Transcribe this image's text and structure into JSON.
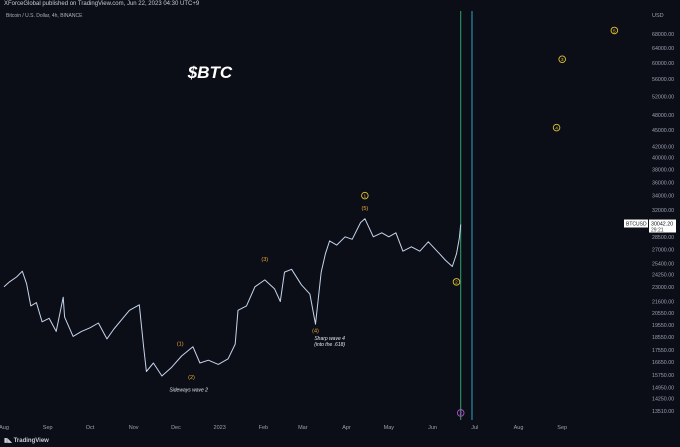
{
  "publisher": "XForceGlobal published on TradingView.com, Jun 22, 2023 04:30 UTC+9",
  "footer": {
    "brand": "TradingView"
  },
  "chart_data": {
    "type": "line",
    "symbol_line": "Bitcoin / U.S. Dollar, 4h, BINANCE",
    "title": "$BTC",
    "currency": "USD",
    "yscale": "log",
    "ylim": [
      13000,
      75000
    ],
    "xlim": [
      "2022-08-01",
      "2023-10-12"
    ],
    "x_ticks": [
      {
        "label": "Aug",
        "date": "2022-08-01"
      },
      {
        "label": "Sep",
        "date": "2022-09-01"
      },
      {
        "label": "Oct",
        "date": "2022-10-01"
      },
      {
        "label": "Nov",
        "date": "2022-11-01"
      },
      {
        "label": "Dec",
        "date": "2022-12-01"
      },
      {
        "label": "2023",
        "date": "2023-01-01"
      },
      {
        "label": "Feb",
        "date": "2023-02-01"
      },
      {
        "label": "Mar",
        "date": "2023-03-01"
      },
      {
        "label": "Apr",
        "date": "2023-04-01"
      },
      {
        "label": "May",
        "date": "2023-05-01"
      },
      {
        "label": "Jun",
        "date": "2023-06-01"
      },
      {
        "label": "Jul",
        "date": "2023-07-01"
      },
      {
        "label": "Aug",
        "date": "2023-08-01"
      },
      {
        "label": "Sep",
        "date": "2023-09-01"
      }
    ],
    "y_ticks": [
      "68000.00",
      "64000.00",
      "60000.00",
      "56000.00",
      "52000.00",
      "48000.00",
      "45000.00",
      "42000.00",
      "40000.00",
      "38000.00",
      "36000.00",
      "34000.00",
      "32000.00",
      "30000.00",
      "28500.00",
      "27000.00",
      "25400.00",
      "24250.00",
      "23000.00",
      "21600.00",
      "20550.00",
      "19550.00",
      "18550.00",
      "17550.00",
      "16650.00",
      "15750.00",
      "14950.00",
      "14250.00",
      "13510.00"
    ],
    "series": [
      {
        "color": "#c6d4ec",
        "points": [
          [
            "2022-08-01",
            23000
          ],
          [
            "2022-08-05",
            23500
          ],
          [
            "2022-08-10",
            24000
          ],
          [
            "2022-08-14",
            24600
          ],
          [
            "2022-08-17",
            23300
          ],
          [
            "2022-08-20",
            21200
          ],
          [
            "2022-08-24",
            21500
          ],
          [
            "2022-08-28",
            19800
          ],
          [
            "2022-09-02",
            20100
          ],
          [
            "2022-09-07",
            19000
          ],
          [
            "2022-09-12",
            22000
          ],
          [
            "2022-09-13",
            20200
          ],
          [
            "2022-09-19",
            18600
          ],
          [
            "2022-09-25",
            19000
          ],
          [
            "2022-10-01",
            19300
          ],
          [
            "2022-10-07",
            19700
          ],
          [
            "2022-10-13",
            18400
          ],
          [
            "2022-10-18",
            19200
          ],
          [
            "2022-10-25",
            20200
          ],
          [
            "2022-10-29",
            20800
          ],
          [
            "2022-11-05",
            21300
          ],
          [
            "2022-11-08",
            17800
          ],
          [
            "2022-11-10",
            16000
          ],
          [
            "2022-11-15",
            16600
          ],
          [
            "2022-11-21",
            15700
          ],
          [
            "2022-11-28",
            16300
          ],
          [
            "2022-12-05",
            17100
          ],
          [
            "2022-12-13",
            17800
          ],
          [
            "2022-12-18",
            16600
          ],
          [
            "2022-12-24",
            16800
          ],
          [
            "2022-12-31",
            16500
          ],
          [
            "2023-01-07",
            16900
          ],
          [
            "2023-01-12",
            18000
          ],
          [
            "2023-01-14",
            20800
          ],
          [
            "2023-01-20",
            21200
          ],
          [
            "2023-01-26",
            23000
          ],
          [
            "2023-02-02",
            23700
          ],
          [
            "2023-02-09",
            22800
          ],
          [
            "2023-02-13",
            21600
          ],
          [
            "2023-02-16",
            24500
          ],
          [
            "2023-02-21",
            24800
          ],
          [
            "2023-02-28",
            23200
          ],
          [
            "2023-03-06",
            22300
          ],
          [
            "2023-03-10",
            19600
          ],
          [
            "2023-03-14",
            24500
          ],
          [
            "2023-03-17",
            26500
          ],
          [
            "2023-03-20",
            28000
          ],
          [
            "2023-03-25",
            27500
          ],
          [
            "2023-03-31",
            28500
          ],
          [
            "2023-04-05",
            28200
          ],
          [
            "2023-04-11",
            30300
          ],
          [
            "2023-04-14",
            30800
          ],
          [
            "2023-04-20",
            28500
          ],
          [
            "2023-04-26",
            29000
          ],
          [
            "2023-05-01",
            28500
          ],
          [
            "2023-05-06",
            29000
          ],
          [
            "2023-05-11",
            26800
          ],
          [
            "2023-05-17",
            27300
          ],
          [
            "2023-05-23",
            26800
          ],
          [
            "2023-05-29",
            27900
          ],
          [
            "2023-06-06",
            26500
          ],
          [
            "2023-06-10",
            25800
          ],
          [
            "2023-06-15",
            25100
          ],
          [
            "2023-06-18",
            26500
          ],
          [
            "2023-06-20",
            28300
          ],
          [
            "2023-06-21",
            30042
          ]
        ]
      }
    ],
    "current_price": {
      "symbol": "BTCUSD",
      "value": "30042.20",
      "timer": "29:21"
    },
    "wave_labels": [
      {
        "text": "(1)",
        "date": "2022-12-04",
        "price": 17900,
        "color": "#f0a93a"
      },
      {
        "text": "(2)",
        "date": "2022-12-12",
        "price": 15500,
        "color": "#f0a93a"
      },
      {
        "text": "(3)",
        "date": "2023-02-02",
        "price": 25700,
        "color": "#f0a93a"
      },
      {
        "text": "(4)",
        "date": "2023-03-10",
        "price": 18900,
        "color": "#f0a93a"
      },
      {
        "text": "(5)",
        "date": "2023-04-14",
        "price": 32000,
        "color": "#f0a93a"
      }
    ],
    "circle_labels": [
      {
        "text": "1",
        "date": "2023-04-14",
        "price": 34000,
        "color": "#e3c230"
      },
      {
        "text": "2",
        "date": "2023-06-18",
        "price": 23500,
        "color": "#e3c230"
      },
      {
        "text": "3",
        "date": "2023-09-01",
        "price": 61000,
        "color": "#e3c230"
      },
      {
        "text": "4",
        "date": "2023-08-28",
        "price": 45500,
        "color": "#e3c230"
      },
      {
        "text": "5",
        "date": "2023-10-08",
        "price": 69000,
        "color": "#e3c230"
      },
      {
        "text": "2",
        "date": "2023-06-21",
        "price": 13400,
        "color": "#b84fd6"
      }
    ],
    "annotations": [
      {
        "text": "Sideways wave 2",
        "date": "2022-12-10",
        "price": 14700
      },
      {
        "text": "Sharp wave 4",
        "date": "2023-03-20",
        "price": 18300
      },
      {
        "text": "(into the .618)",
        "date": "2023-03-20",
        "price": 17850
      }
    ],
    "vertical_lines": [
      {
        "date": "2023-06-21",
        "color": "#2fa76b"
      },
      {
        "date": "2023-06-29",
        "color": "#2ea6c4"
      }
    ],
    "colors": {
      "background": "#0b0e16",
      "price_line": "#c6d4ec",
      "axis_text": "#9aa1b0",
      "label_box": "#ffffff"
    }
  }
}
